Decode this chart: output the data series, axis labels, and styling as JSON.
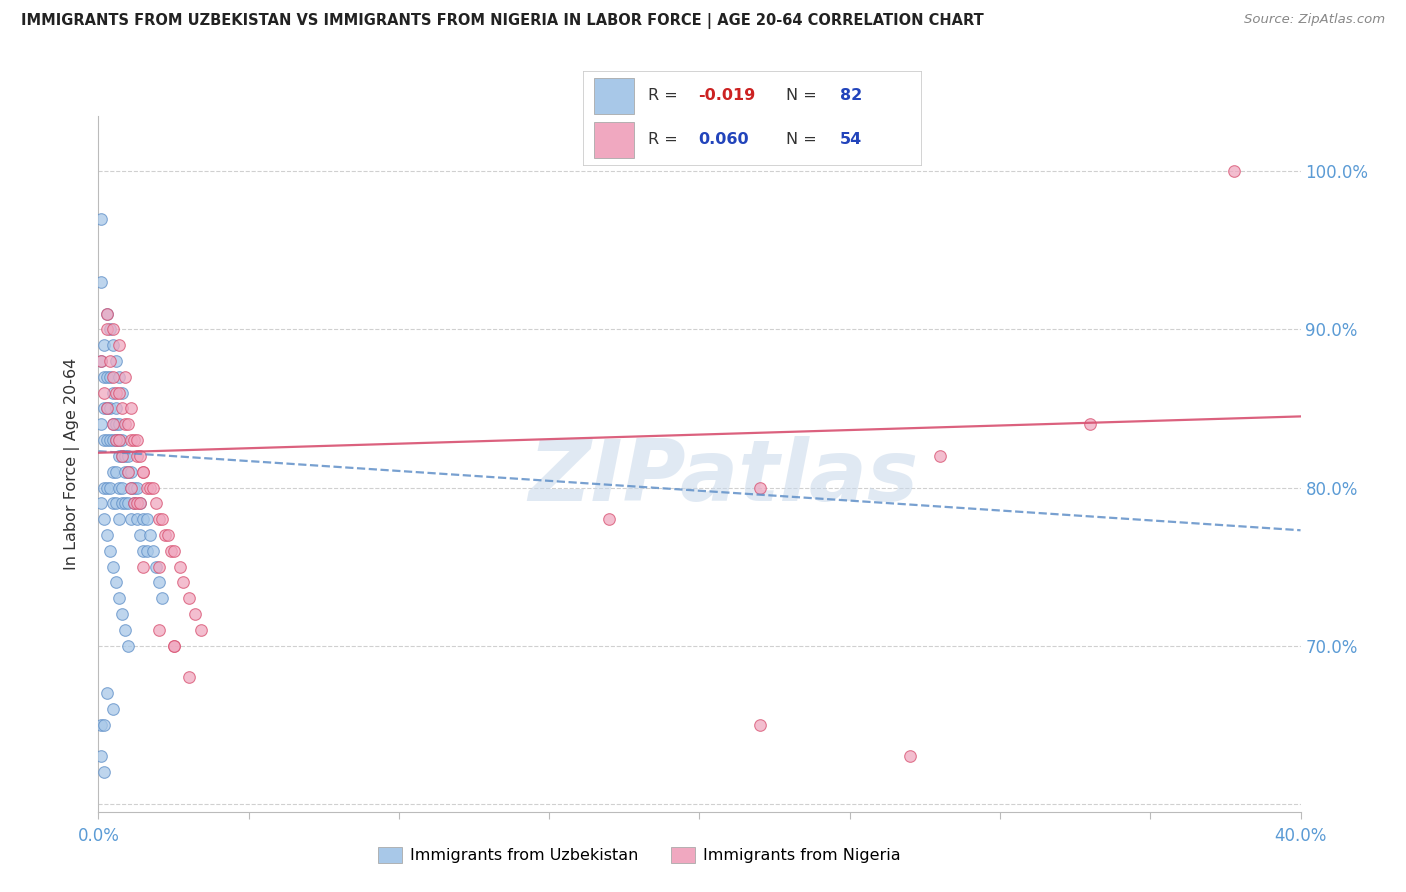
{
  "title": "IMMIGRANTS FROM UZBEKISTAN VS IMMIGRANTS FROM NIGERIA IN LABOR FORCE | AGE 20-64 CORRELATION CHART",
  "source": "Source: ZipAtlas.com",
  "ylabel": "In Labor Force | Age 20-64",
  "legend_labels": [
    "Immigrants from Uzbekistan",
    "Immigrants from Nigeria"
  ],
  "uzbekistan_R": -0.019,
  "uzbekistan_N": 82,
  "nigeria_R": 0.06,
  "nigeria_N": 54,
  "uzbekistan_color": "#a8c8e8",
  "nigeria_color": "#f0a8c0",
  "uzbekistan_trend_color": "#6090c8",
  "nigeria_trend_color": "#d85070",
  "xlim": [
    0.0,
    0.4
  ],
  "ylim": [
    0.595,
    1.035
  ],
  "watermark": "ZIPatlas",
  "title_color": "#222222",
  "source_color": "#888888",
  "axis_label_color": "#5b9bd5",
  "grid_color": "#d0d0d0",
  "background": "#ffffff",
  "uz_x": [
    0.001,
    0.001,
    0.001,
    0.001,
    0.002,
    0.002,
    0.002,
    0.002,
    0.002,
    0.003,
    0.003,
    0.003,
    0.003,
    0.004,
    0.004,
    0.004,
    0.004,
    0.005,
    0.005,
    0.005,
    0.005,
    0.005,
    0.006,
    0.006,
    0.006,
    0.006,
    0.006,
    0.007,
    0.007,
    0.007,
    0.007,
    0.007,
    0.008,
    0.008,
    0.008,
    0.008,
    0.009,
    0.009,
    0.009,
    0.01,
    0.01,
    0.01,
    0.011,
    0.011,
    0.011,
    0.012,
    0.012,
    0.013,
    0.013,
    0.014,
    0.014,
    0.015,
    0.015,
    0.016,
    0.016,
    0.017,
    0.018,
    0.019,
    0.02,
    0.021,
    0.001,
    0.002,
    0.003,
    0.004,
    0.005,
    0.006,
    0.007,
    0.008,
    0.009,
    0.01,
    0.003,
    0.004,
    0.005,
    0.006,
    0.007,
    0.008,
    0.003,
    0.005,
    0.001,
    0.002,
    0.001,
    0.002
  ],
  "uz_y": [
    0.97,
    0.93,
    0.88,
    0.84,
    0.89,
    0.87,
    0.85,
    0.83,
    0.8,
    0.87,
    0.85,
    0.83,
    0.8,
    0.87,
    0.85,
    0.83,
    0.8,
    0.86,
    0.84,
    0.83,
    0.81,
    0.79,
    0.85,
    0.84,
    0.83,
    0.81,
    0.79,
    0.84,
    0.83,
    0.82,
    0.8,
    0.78,
    0.83,
    0.82,
    0.8,
    0.79,
    0.82,
    0.81,
    0.79,
    0.82,
    0.81,
    0.79,
    0.81,
    0.8,
    0.78,
    0.8,
    0.79,
    0.8,
    0.78,
    0.79,
    0.77,
    0.78,
    0.76,
    0.78,
    0.76,
    0.77,
    0.76,
    0.75,
    0.74,
    0.73,
    0.79,
    0.78,
    0.77,
    0.76,
    0.75,
    0.74,
    0.73,
    0.72,
    0.71,
    0.7,
    0.91,
    0.9,
    0.89,
    0.88,
    0.87,
    0.86,
    0.67,
    0.66,
    0.65,
    0.65,
    0.63,
    0.62
  ],
  "ng_x": [
    0.001,
    0.002,
    0.003,
    0.003,
    0.004,
    0.005,
    0.005,
    0.006,
    0.006,
    0.007,
    0.007,
    0.008,
    0.008,
    0.009,
    0.01,
    0.01,
    0.011,
    0.011,
    0.012,
    0.012,
    0.013,
    0.013,
    0.014,
    0.014,
    0.015,
    0.016,
    0.017,
    0.018,
    0.019,
    0.02,
    0.021,
    0.022,
    0.023,
    0.024,
    0.025,
    0.027,
    0.028,
    0.03,
    0.032,
    0.034,
    0.003,
    0.005,
    0.007,
    0.009,
    0.011,
    0.013,
    0.015,
    0.02,
    0.025,
    0.17,
    0.22,
    0.28,
    0.33,
    0.378
  ],
  "ng_y": [
    0.88,
    0.86,
    0.9,
    0.85,
    0.88,
    0.87,
    0.84,
    0.86,
    0.83,
    0.86,
    0.83,
    0.85,
    0.82,
    0.84,
    0.84,
    0.81,
    0.83,
    0.8,
    0.83,
    0.79,
    0.82,
    0.79,
    0.82,
    0.79,
    0.81,
    0.8,
    0.8,
    0.8,
    0.79,
    0.78,
    0.78,
    0.77,
    0.77,
    0.76,
    0.76,
    0.75,
    0.74,
    0.73,
    0.72,
    0.71,
    0.91,
    0.9,
    0.89,
    0.87,
    0.85,
    0.83,
    0.81,
    0.75,
    0.7,
    0.78,
    0.8,
    0.82,
    0.84,
    1.0
  ],
  "ng_low_x": [
    0.015,
    0.02,
    0.025,
    0.03,
    0.22,
    0.27
  ],
  "ng_low_y": [
    0.75,
    0.71,
    0.7,
    0.68,
    0.65,
    0.63
  ]
}
